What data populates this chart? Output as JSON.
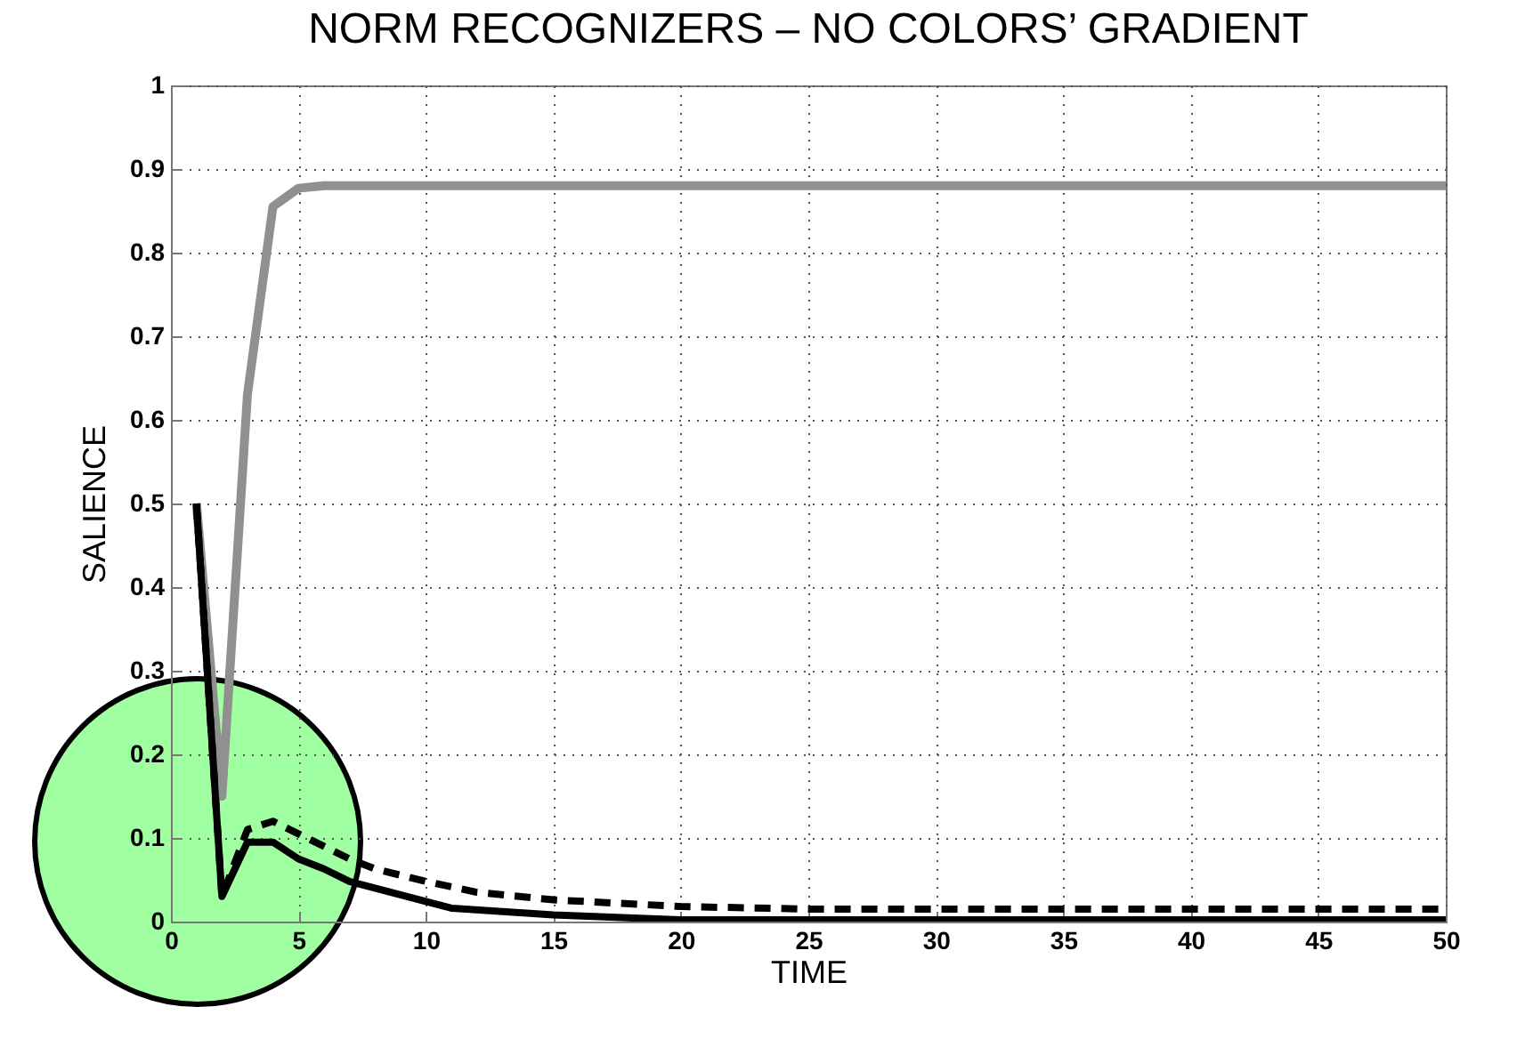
{
  "chart_data": {
    "type": "line",
    "title": "NORM RECOGNIZERS – NO COLORS’ GRADIENT",
    "xlabel": "TIME",
    "ylabel": "SALIENCE",
    "xlim": [
      0,
      50
    ],
    "xticks": [
      0,
      5,
      10,
      15,
      20,
      25,
      30,
      35,
      40,
      45,
      50
    ],
    "ylim": [
      0,
      1
    ],
    "yticks": [
      0,
      0.1,
      0.2,
      0.3,
      0.4,
      0.5,
      0.6,
      0.7,
      0.8,
      0.9,
      1
    ],
    "grid": true,
    "series": [
      {
        "color": "#909090",
        "line_style": "solid",
        "x": [
          1,
          2,
          3,
          4,
          5,
          6,
          10,
          20,
          30,
          40,
          50
        ],
        "values": [
          0.5,
          0.15,
          0.63,
          0.855,
          0.877,
          0.88,
          0.88,
          0.88,
          0.88,
          0.88,
          0.88
        ]
      },
      {
        "color": "#000000",
        "line_style": "dashed",
        "x": [
          1,
          2,
          3,
          4,
          5,
          6,
          7,
          8,
          10,
          12,
          15,
          20,
          25,
          30,
          40,
          50
        ],
        "values": [
          0.5,
          0.03,
          0.11,
          0.12,
          0.105,
          0.09,
          0.075,
          0.063,
          0.048,
          0.035,
          0.026,
          0.018,
          0.015,
          0.015,
          0.015,
          0.015
        ]
      },
      {
        "color": "#000000",
        "line_style": "solid",
        "x": [
          1,
          2,
          3,
          4,
          5,
          6,
          7,
          8,
          11,
          15,
          20,
          30,
          40,
          50
        ],
        "values": [
          0.5,
          0.03,
          0.095,
          0.095,
          0.075,
          0.063,
          0.048,
          0.04,
          0.016,
          0.008,
          0.002,
          0.002,
          0.002,
          0.002
        ]
      }
    ]
  }
}
